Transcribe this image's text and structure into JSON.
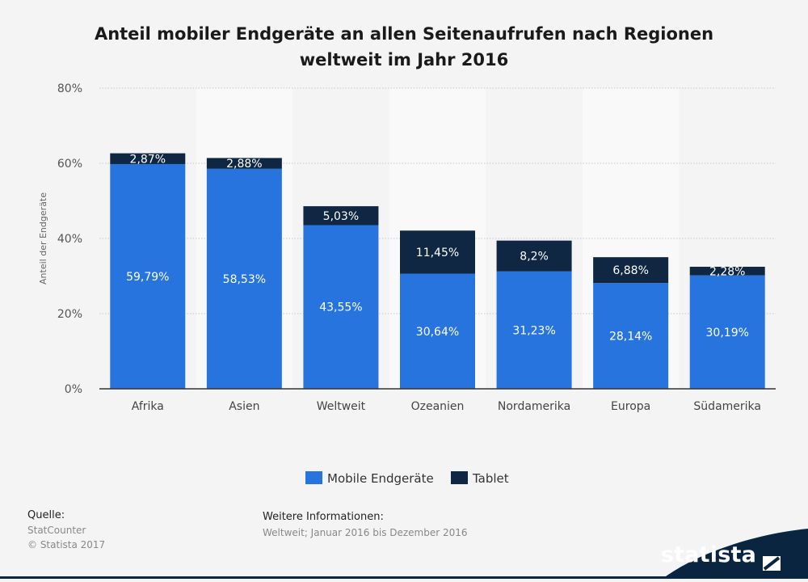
{
  "title_line1": "Anteil mobiler Endgeräte an allen Seitenaufrufen nach Regionen",
  "title_line2": "weltweit im Jahr 2016",
  "chart_data": {
    "type": "bar",
    "stacked": true,
    "categories": [
      "Afrika",
      "Asien",
      "Weltweit",
      "Ozeanien",
      "Nordamerika",
      "Europa",
      "Südamerika"
    ],
    "series": [
      {
        "name": "Mobile Endgeräte",
        "color": "#2874de",
        "values": [
          59.79,
          58.53,
          43.55,
          30.64,
          31.23,
          28.14,
          30.19
        ],
        "labels": [
          "59,79%",
          "58,53%",
          "43,55%",
          "30,64%",
          "31,23%",
          "28,14%",
          "30,19%"
        ]
      },
      {
        "name": "Tablet",
        "color": "#0f2742",
        "values": [
          2.87,
          2.88,
          5.03,
          11.45,
          8.2,
          6.88,
          2.28
        ],
        "labels": [
          "2,87%",
          "2,88%",
          "5,03%",
          "11,45%",
          "8,2%",
          "6,88%",
          "2,28%"
        ]
      }
    ],
    "ylabel": "Anteil der Endgeräte",
    "xlabel": "",
    "ylim": [
      0,
      80
    ],
    "yticks": [
      0,
      20,
      40,
      60,
      80
    ],
    "ytick_labels": [
      "0%",
      "20%",
      "40%",
      "60%",
      "80%"
    ],
    "grid": true,
    "legend": "bottom-center"
  },
  "source_label": "Quelle:",
  "source_lines": [
    "StatCounter",
    "© Statista 2017"
  ],
  "info_label": "Weitere Informationen:",
  "info_text": "Weltweit; Januar 2016 bis Dezember 2016",
  "brand": "statista",
  "colors": {
    "brand_dark": "#0a2540",
    "band": "#f9f9f9"
  }
}
